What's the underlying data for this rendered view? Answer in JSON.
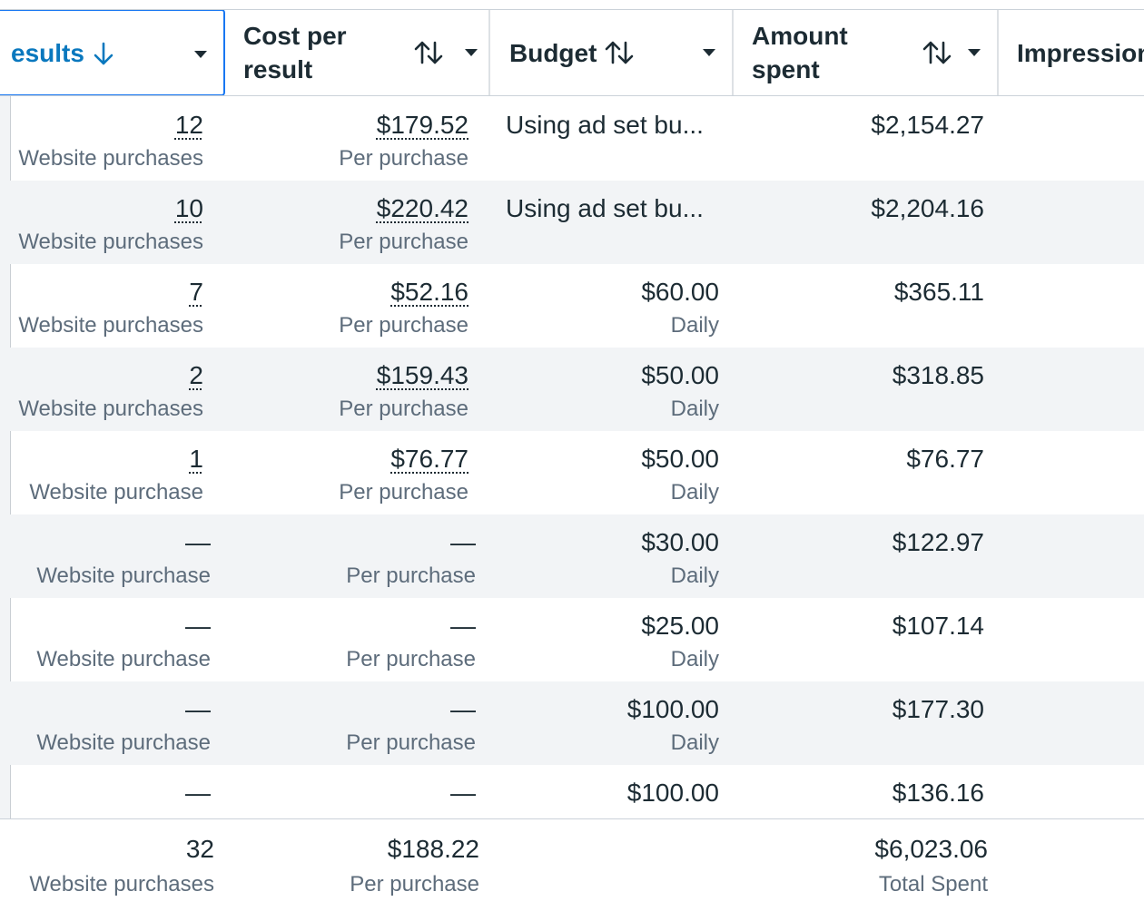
{
  "columns": {
    "results": "esults",
    "cost_per_result": "Cost per result",
    "budget": "Budget",
    "amount_spent": "Amount spent",
    "impressions": "Impression"
  },
  "rows": [
    {
      "results": "12",
      "results_label": "Website purchases",
      "cost": "$179.52",
      "cost_label": "Per purchase",
      "budget": "Using ad set bu...",
      "budget_label": "",
      "amount": "$2,154.27"
    },
    {
      "results": "10",
      "results_label": "Website purchases",
      "cost": "$220.42",
      "cost_label": "Per purchase",
      "budget": "Using ad set bu...",
      "budget_label": "",
      "amount": "$2,204.16"
    },
    {
      "results": "7",
      "results_label": "Website purchases",
      "cost": "$52.16",
      "cost_label": "Per purchase",
      "budget": "$60.00",
      "budget_label": "Daily",
      "amount": "$365.11"
    },
    {
      "results": "2",
      "results_label": "Website purchases",
      "cost": "$159.43",
      "cost_label": "Per purchase",
      "budget": "$50.00",
      "budget_label": "Daily",
      "amount": "$318.85"
    },
    {
      "results": "1",
      "results_label": "Website purchase",
      "cost": "$76.77",
      "cost_label": "Per purchase",
      "budget": "$50.00",
      "budget_label": "Daily",
      "amount": "$76.77"
    },
    {
      "results": "—",
      "results_label": "Website purchase",
      "cost": "—",
      "cost_label": "Per purchase",
      "budget": "$30.00",
      "budget_label": "Daily",
      "amount": "$122.97"
    },
    {
      "results": "—",
      "results_label": "Website purchase",
      "cost": "—",
      "cost_label": "Per purchase",
      "budget": "$25.00",
      "budget_label": "Daily",
      "amount": "$107.14"
    },
    {
      "results": "—",
      "results_label": "Website purchase",
      "cost": "—",
      "cost_label": "Per purchase",
      "budget": "$100.00",
      "budget_label": "Daily",
      "amount": "$177.30"
    },
    {
      "results": "—",
      "results_label": "",
      "cost": "—",
      "cost_label": "",
      "budget": "$100.00",
      "budget_label": "",
      "amount": "$136.16"
    }
  ],
  "totals": {
    "results": "32",
    "results_label": "Website purchases",
    "cost": "$188.22",
    "cost_label": "Per purchase",
    "amount": "$6,023.06",
    "amount_label": "Total Spent"
  },
  "colors": {
    "accent": "#1877f2",
    "header_active_text": "#0a78be",
    "stripe": "#f2f4f6",
    "muted_text": "#5d6c7b"
  },
  "icons": {
    "results_sort": "arrow-down-icon",
    "sort": "sort-arrows-icon",
    "menu": "caret-down-icon"
  }
}
